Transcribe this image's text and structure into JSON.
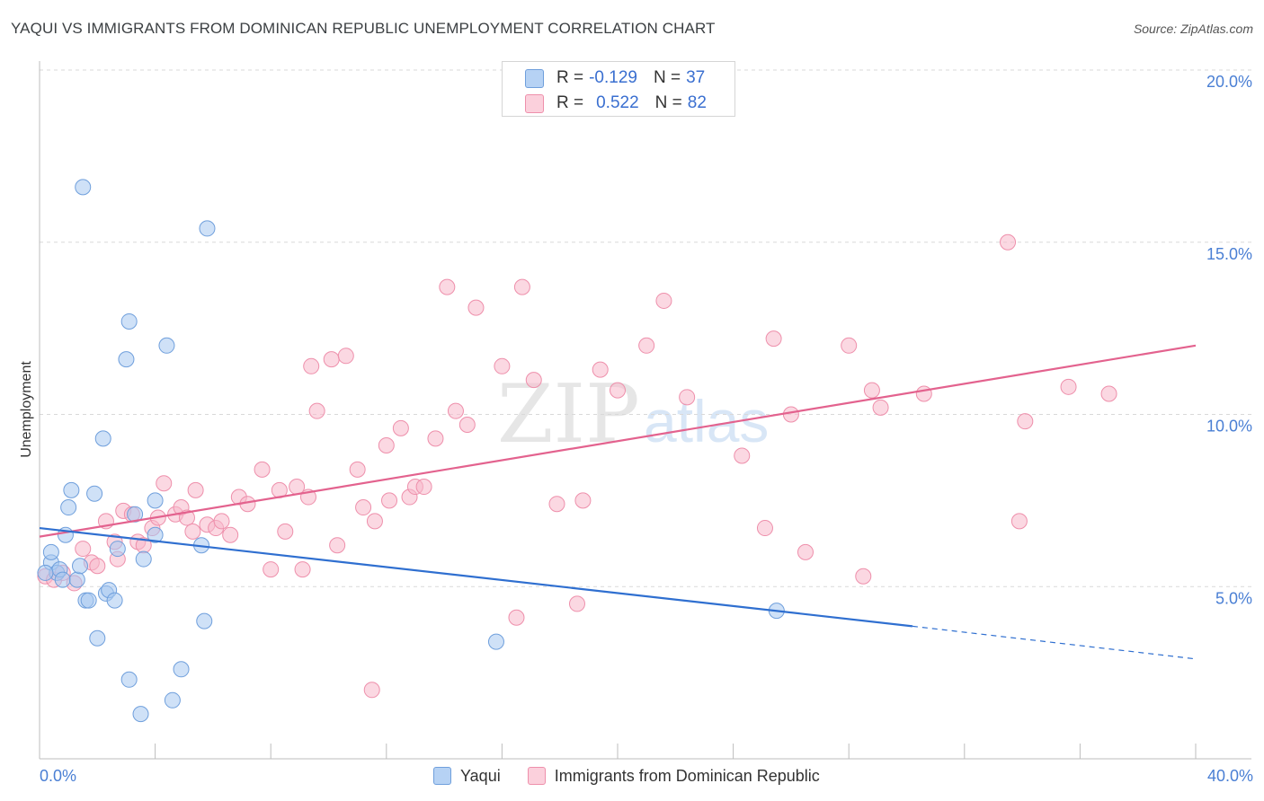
{
  "title": "YAQUI VS IMMIGRANTS FROM DOMINICAN REPUBLIC UNEMPLOYMENT CORRELATION CHART",
  "source": "Source: ZipAtlas.com",
  "watermark": {
    "zip": "ZIP",
    "atlas": "atlas"
  },
  "legend": {
    "r_label": "R =",
    "n_label": "N =",
    "rows": [
      {
        "r": "-0.129",
        "n": "37",
        "color": "#a8c8f0"
      },
      {
        "r": "0.522",
        "n": "82",
        "color": "#f7b8cb"
      }
    ]
  },
  "chart_data": {
    "type": "scatter",
    "title": "YAQUI VS IMMIGRANTS FROM DOMINICAN REPUBLIC UNEMPLOYMENT CORRELATION CHART",
    "xlabel": "",
    "ylabel": "Unemployment",
    "xlim": [
      0,
      40
    ],
    "ylim": [
      0,
      20
    ],
    "x_tick_labels": [
      "0.0%",
      "40.0%"
    ],
    "y_ticks": [
      5,
      10,
      15,
      20
    ],
    "y_tick_labels": [
      "5.0%",
      "10.0%",
      "15.0%",
      "20.0%"
    ],
    "x_minor_ticks": [
      4,
      8,
      12,
      16,
      20,
      24,
      28,
      32,
      36,
      40
    ],
    "grid": true,
    "legend_position": "bottom",
    "series": [
      {
        "name": "Yaqui",
        "color": "#a8c8f0",
        "stroke": "#6f9fdc",
        "trend": {
          "x0": 0,
          "y0": 6.7,
          "x1": 30.2,
          "y1": 3.85,
          "dash_to_x": 40,
          "dash_to_y": 2.9,
          "color": "#2f6fd0"
        },
        "points": [
          [
            0.4,
            5.7
          ],
          [
            0.4,
            6.0
          ],
          [
            0.6,
            5.4
          ],
          [
            0.7,
            5.5
          ],
          [
            0.8,
            5.2
          ],
          [
            0.9,
            6.5
          ],
          [
            1.0,
            7.3
          ],
          [
            1.1,
            7.8
          ],
          [
            1.3,
            5.2
          ],
          [
            1.4,
            5.6
          ],
          [
            1.5,
            16.6
          ],
          [
            1.6,
            4.6
          ],
          [
            1.7,
            4.6
          ],
          [
            1.9,
            7.7
          ],
          [
            2.0,
            3.5
          ],
          [
            2.2,
            9.3
          ],
          [
            2.3,
            4.8
          ],
          [
            2.4,
            4.9
          ],
          [
            2.6,
            4.6
          ],
          [
            2.7,
            6.1
          ],
          [
            3.0,
            11.6
          ],
          [
            3.1,
            2.3
          ],
          [
            3.1,
            12.7
          ],
          [
            3.3,
            7.1
          ],
          [
            3.5,
            1.3
          ],
          [
            3.6,
            5.8
          ],
          [
            4.0,
            6.5
          ],
          [
            4.0,
            7.5
          ],
          [
            4.4,
            12.0
          ],
          [
            4.6,
            1.7
          ],
          [
            4.9,
            2.6
          ],
          [
            5.6,
            6.2
          ],
          [
            5.7,
            4.0
          ],
          [
            5.8,
            15.4
          ],
          [
            15.8,
            3.4
          ],
          [
            25.5,
            4.3
          ],
          [
            0.2,
            5.4
          ]
        ]
      },
      {
        "name": "Immigrants from Dominican Republic",
        "color": "#f7b8cb",
        "stroke": "#ee8fab",
        "trend": {
          "x0": 0,
          "y0": 6.45,
          "x1": 40,
          "y1": 12.0,
          "color": "#e3628e"
        },
        "points": [
          [
            0.2,
            5.3
          ],
          [
            0.5,
            5.2
          ],
          [
            0.8,
            5.4
          ],
          [
            1.2,
            5.1
          ],
          [
            1.5,
            6.1
          ],
          [
            1.8,
            5.7
          ],
          [
            2.0,
            5.6
          ],
          [
            2.3,
            6.9
          ],
          [
            2.6,
            6.3
          ],
          [
            2.7,
            5.8
          ],
          [
            2.9,
            7.2
          ],
          [
            3.2,
            7.1
          ],
          [
            3.4,
            6.3
          ],
          [
            3.6,
            6.2
          ],
          [
            3.9,
            6.7
          ],
          [
            4.1,
            7.0
          ],
          [
            4.3,
            8.0
          ],
          [
            4.7,
            7.1
          ],
          [
            4.9,
            7.3
          ],
          [
            5.1,
            7.0
          ],
          [
            5.3,
            6.6
          ],
          [
            5.4,
            7.8
          ],
          [
            5.8,
            6.8
          ],
          [
            6.1,
            6.7
          ],
          [
            6.3,
            6.9
          ],
          [
            6.6,
            6.5
          ],
          [
            6.9,
            7.6
          ],
          [
            7.2,
            7.4
          ],
          [
            7.7,
            8.4
          ],
          [
            8.0,
            5.5
          ],
          [
            8.3,
            7.8
          ],
          [
            8.5,
            6.6
          ],
          [
            8.9,
            7.9
          ],
          [
            9.1,
            5.5
          ],
          [
            9.3,
            7.6
          ],
          [
            9.4,
            11.4
          ],
          [
            9.6,
            10.1
          ],
          [
            10.1,
            11.6
          ],
          [
            10.3,
            6.2
          ],
          [
            10.6,
            11.7
          ],
          [
            11.0,
            8.4
          ],
          [
            11.2,
            7.3
          ],
          [
            11.5,
            2.0
          ],
          [
            11.6,
            6.9
          ],
          [
            12.0,
            9.1
          ],
          [
            12.1,
            7.5
          ],
          [
            12.5,
            9.6
          ],
          [
            12.8,
            7.6
          ],
          [
            13.0,
            7.9
          ],
          [
            13.3,
            7.9
          ],
          [
            13.7,
            9.3
          ],
          [
            14.1,
            13.7
          ],
          [
            14.4,
            10.1
          ],
          [
            14.8,
            9.7
          ],
          [
            15.1,
            13.1
          ],
          [
            16.0,
            11.4
          ],
          [
            16.5,
            4.1
          ],
          [
            16.7,
            13.7
          ],
          [
            17.1,
            11.0
          ],
          [
            17.9,
            7.4
          ],
          [
            18.6,
            4.5
          ],
          [
            18.8,
            7.5
          ],
          [
            19.4,
            11.3
          ],
          [
            20.0,
            10.7
          ],
          [
            21.0,
            12.0
          ],
          [
            21.6,
            13.3
          ],
          [
            22.4,
            10.5
          ],
          [
            24.3,
            8.8
          ],
          [
            25.1,
            6.7
          ],
          [
            25.4,
            12.2
          ],
          [
            26.0,
            10.0
          ],
          [
            26.5,
            6.0
          ],
          [
            28.0,
            12.0
          ],
          [
            28.5,
            5.3
          ],
          [
            28.8,
            10.7
          ],
          [
            29.1,
            10.2
          ],
          [
            30.6,
            10.6
          ],
          [
            33.5,
            15.0
          ],
          [
            33.9,
            6.9
          ],
          [
            34.1,
            9.8
          ],
          [
            35.6,
            10.8
          ],
          [
            37.0,
            10.6
          ]
        ]
      }
    ]
  }
}
